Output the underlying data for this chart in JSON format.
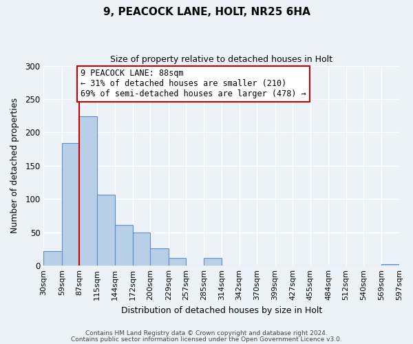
{
  "title": "9, PEACOCK LANE, HOLT, NR25 6HA",
  "subtitle": "Size of property relative to detached houses in Holt",
  "xlabel": "Distribution of detached houses by size in Holt",
  "ylabel": "Number of detached properties",
  "bar_values": [
    22,
    184,
    224,
    107,
    61,
    50,
    26,
    12,
    0,
    12,
    0,
    0,
    0,
    0,
    0,
    0,
    0,
    0,
    0,
    2
  ],
  "bin_edges": [
    30,
    59,
    87,
    115,
    144,
    172,
    200,
    229,
    257,
    285,
    314,
    342,
    370,
    399,
    427,
    455,
    484,
    512,
    540,
    569,
    597
  ],
  "bar_color": "#b8cfe8",
  "bar_edge_color": "#5b8fc9",
  "bar_edge_width": 0.8,
  "ylim": [
    0,
    300
  ],
  "yticks": [
    0,
    50,
    100,
    150,
    200,
    250,
    300
  ],
  "property_line_x": 87,
  "property_line_color": "#cc0000",
  "annotation_text": "9 PEACOCK LANE: 88sqm\n← 31% of detached houses are smaller (210)\n69% of semi-detached houses are larger (478) →",
  "annotation_box_color": "#ffffff",
  "annotation_box_edge_color": "#cc0000",
  "footer_line1": "Contains HM Land Registry data © Crown copyright and database right 2024.",
  "footer_line2": "Contains public sector information licensed under the Open Government Licence v3.0.",
  "background_color": "#edf1f8",
  "plot_background_color": "#edf1f8",
  "grid_color": "#ffffff",
  "title_fontsize": 11,
  "subtitle_fontsize": 9,
  "xlabel_fontsize": 9,
  "ylabel_fontsize": 9,
  "tick_fontsize": 8,
  "footer_fontsize": 6.5,
  "annotation_fontsize": 8.5
}
